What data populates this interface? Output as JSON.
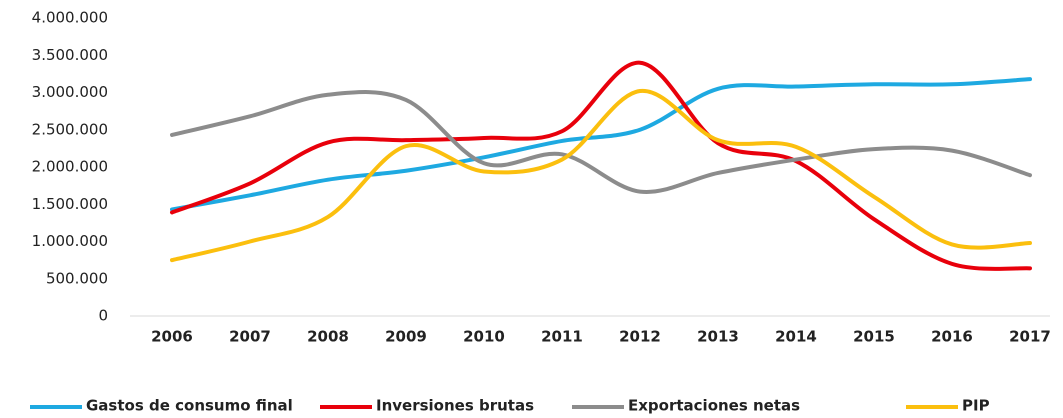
{
  "chart_data": {
    "type": "line",
    "categories": [
      "2006",
      "2007",
      "2008",
      "2009",
      "2010",
      "2011",
      "2012",
      "2013",
      "2014",
      "2015",
      "2016",
      "2017"
    ],
    "series": [
      {
        "name": "Gastos de consumo final",
        "color": "#1ea9e1",
        "values": [
          1430000,
          1620000,
          1830000,
          1950000,
          2130000,
          2350000,
          2500000,
          3050000,
          3080000,
          3110000,
          3110000,
          3180000
        ]
      },
      {
        "name": "Inversiones brutas",
        "color": "#e8000b",
        "values": [
          1390000,
          1780000,
          2330000,
          2360000,
          2390000,
          2480000,
          3400000,
          2320000,
          2080000,
          1300000,
          700000,
          640000
        ]
      },
      {
        "name": "Exportaciones netas",
        "color": "#8c8c8c",
        "values": [
          2430000,
          2680000,
          2970000,
          2900000,
          2050000,
          2170000,
          1670000,
          1920000,
          2100000,
          2240000,
          2220000,
          1890000
        ]
      },
      {
        "name": "PIP",
        "color": "#fbbf0e",
        "values": [
          750000,
          1000000,
          1330000,
          2280000,
          1940000,
          2100000,
          3020000,
          2360000,
          2270000,
          1600000,
          960000,
          980000
        ]
      }
    ],
    "ylim": [
      0,
      4000000
    ],
    "yticks": [
      0,
      {
        "value": 500000,
        "label": "500.000"
      },
      {
        "value": 1000000,
        "label": "1.000.000"
      },
      {
        "value": 1500000,
        "label": "1.500.000"
      },
      {
        "value": 2000000,
        "label": "2.000.000"
      },
      {
        "value": 2500000,
        "label": "2.500.000"
      },
      {
        "value": 3000000,
        "label": "3.000.000"
      },
      {
        "value": 3500000,
        "label": "3.500.000"
      },
      {
        "value": 4000000,
        "label": "4.000.000"
      }
    ],
    "grid": false,
    "legend": "bottom"
  }
}
